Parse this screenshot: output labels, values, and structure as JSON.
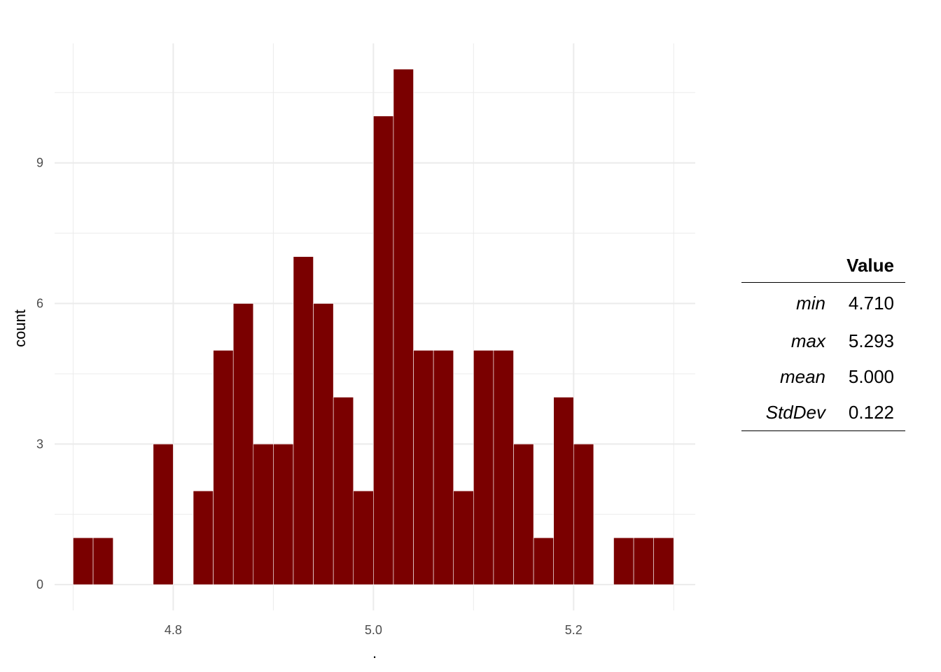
{
  "chart_data": {
    "type": "bar",
    "subtype": "histogram",
    "xlabel": ".",
    "ylabel": "count",
    "xlim": [
      4.6815,
      5.3215
    ],
    "ylim": [
      -0.55,
      11.55
    ],
    "x_ticks": [
      4.8,
      5.0,
      5.2
    ],
    "x_tick_labels": [
      "4.8",
      "5.0",
      "5.2"
    ],
    "y_ticks": [
      0,
      3,
      6,
      9
    ],
    "y_tick_labels": [
      "0",
      "3",
      "6",
      "9"
    ],
    "x_minor_grid": [
      4.7,
      4.9,
      5.1,
      5.3
    ],
    "y_minor_grid": [
      1.5,
      4.5,
      7.5,
      10.5
    ],
    "bin_width": 0.02,
    "bin_centers": [
      4.71,
      4.73,
      4.75,
      4.77,
      4.79,
      4.81,
      4.83,
      4.85,
      4.87,
      4.89,
      4.91,
      4.93,
      4.95,
      4.97,
      4.99,
      5.01,
      5.03,
      5.05,
      5.07,
      5.09,
      5.11,
      5.13,
      5.15,
      5.17,
      5.19,
      5.21,
      5.23,
      5.25,
      5.27,
      5.29
    ],
    "values": [
      1,
      1,
      0,
      0,
      3,
      0,
      2,
      5,
      6,
      3,
      3,
      7,
      6,
      4,
      2,
      10,
      11,
      5,
      5,
      2,
      5,
      5,
      3,
      1,
      4,
      3,
      0,
      1,
      1,
      1
    ],
    "bar_color": "#7a0000",
    "bar_outline": "#ffffff",
    "grid": true,
    "legend": "none"
  },
  "table": {
    "header": "Value",
    "rows": [
      {
        "name": "min",
        "value": "4.710"
      },
      {
        "name": "max",
        "value": "5.293"
      },
      {
        "name": "mean",
        "value": "5.000"
      },
      {
        "name": "StdDev",
        "value": "0.122"
      }
    ]
  }
}
